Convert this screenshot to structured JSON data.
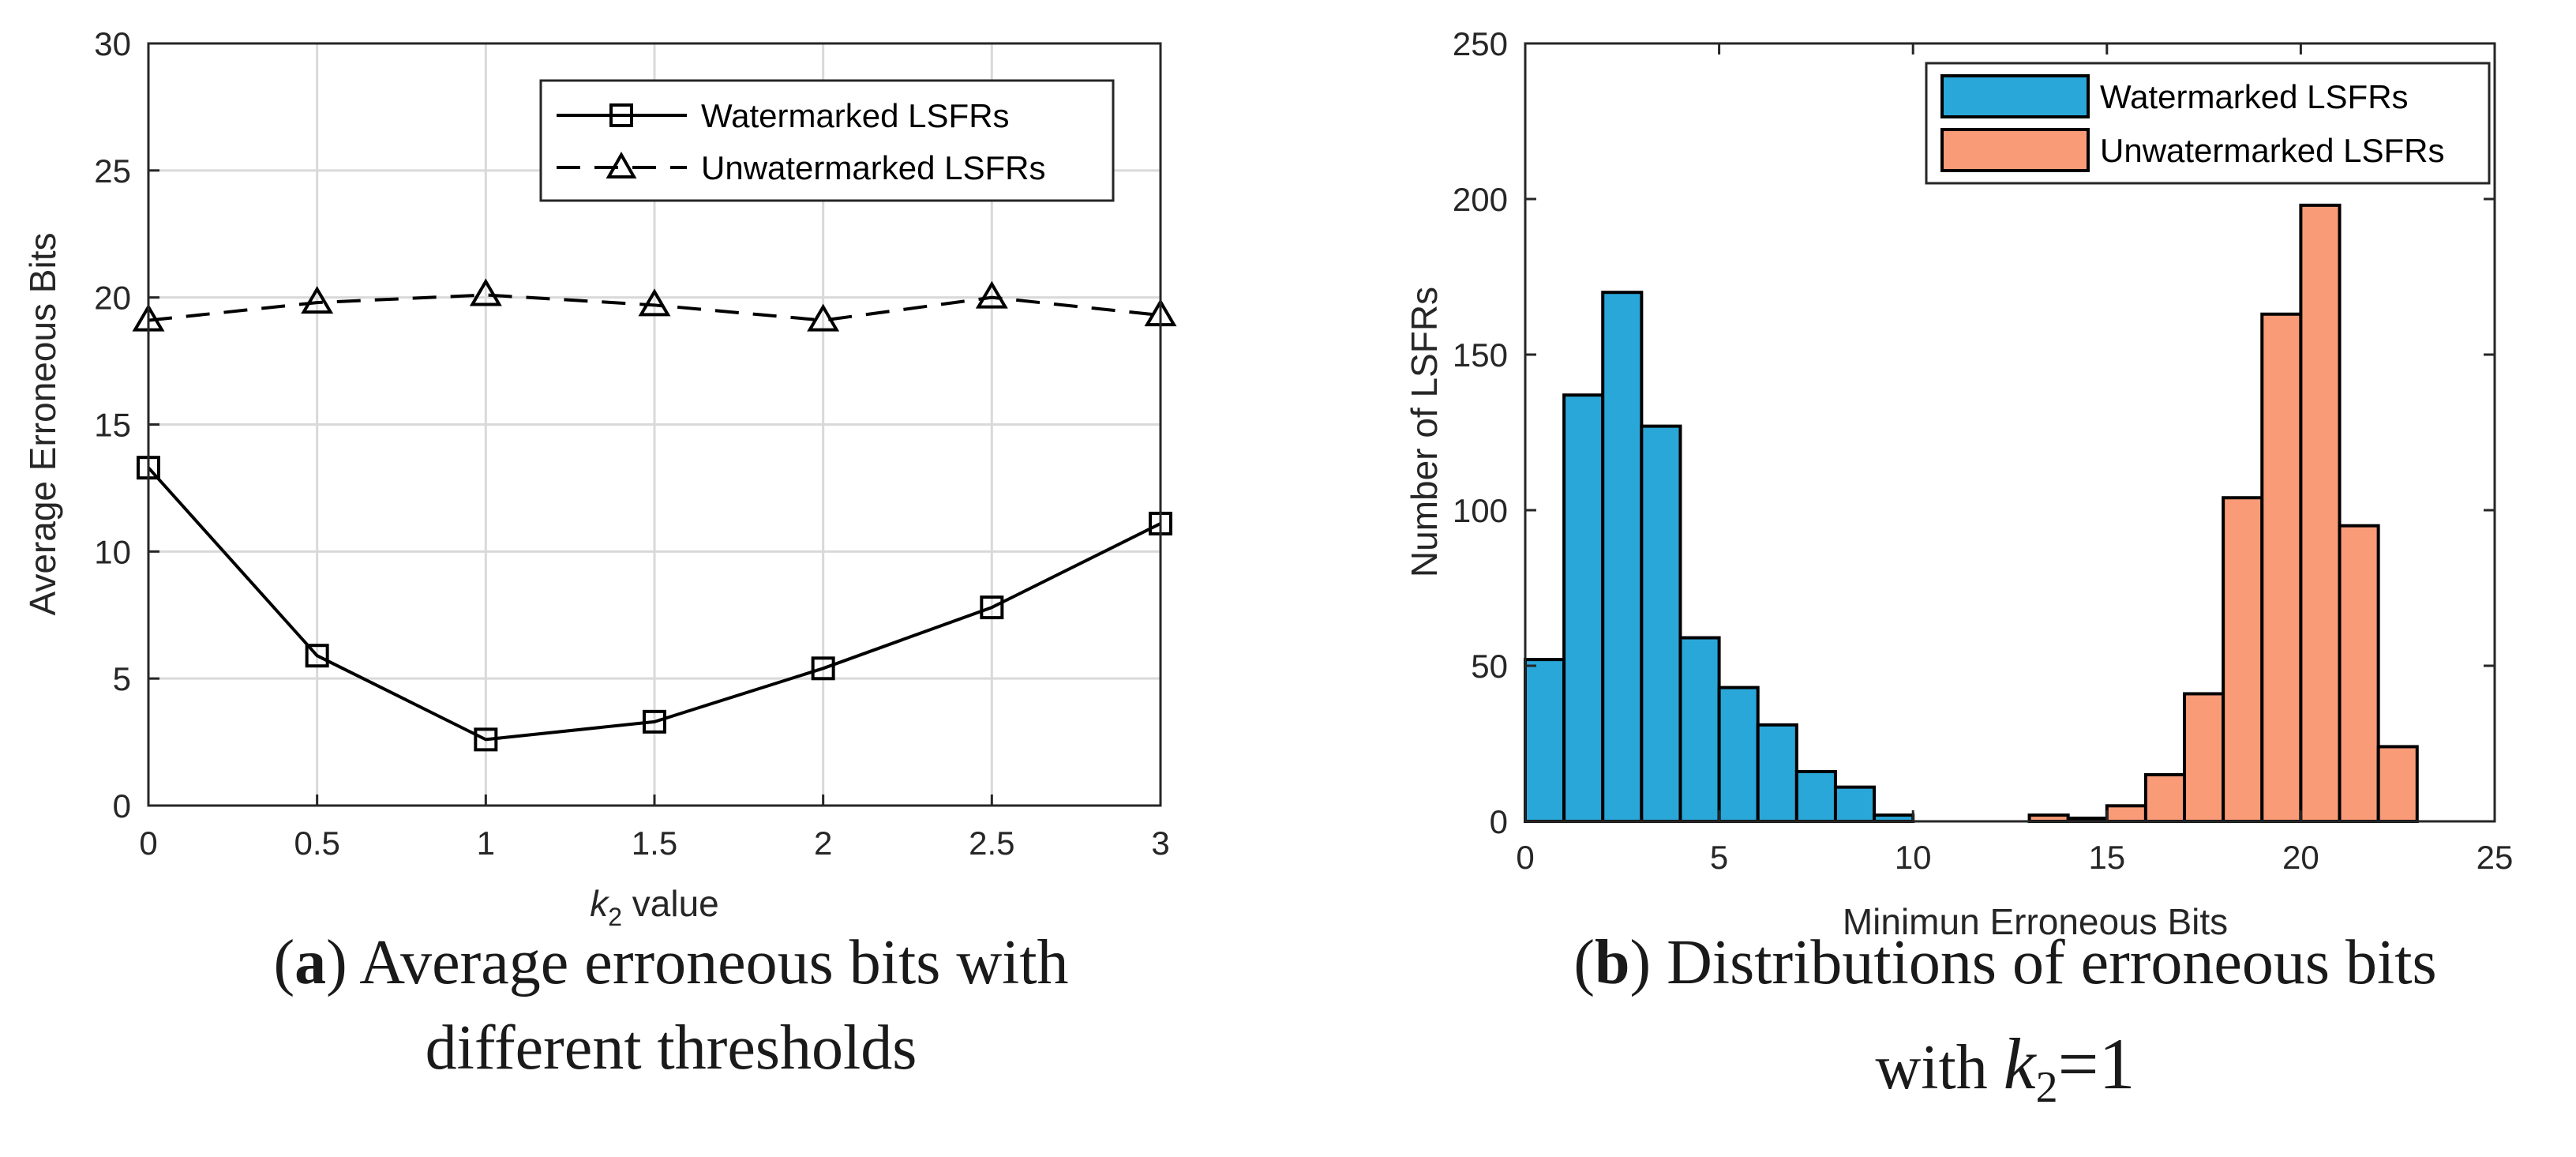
{
  "chart_data": [
    {
      "type": "line",
      "title": "",
      "xlabel_var": "k",
      "xlabel_sub": "2",
      "xlabel_rest": " value",
      "ylabel": "Average Erroneous Bits",
      "xlim": [
        0,
        3
      ],
      "ylim": [
        0,
        30
      ],
      "grid": true,
      "legend_position": "top-right",
      "x_ticks": [
        "0",
        "0.5",
        "1",
        "1.5",
        "2",
        "2.5",
        "3"
      ],
      "y_ticks": [
        "0",
        "5",
        "10",
        "15",
        "20",
        "25",
        "30"
      ],
      "x": [
        0,
        0.5,
        1,
        1.5,
        2,
        2.5,
        3
      ],
      "series": [
        {
          "name": "Watermarked LSFRs",
          "marker": "square",
          "line": "solid",
          "values": [
            13.3,
            5.9,
            2.6,
            3.3,
            5.4,
            7.8,
            11.1
          ]
        },
        {
          "name": "Unwatermarked LSFRs",
          "marker": "triangle",
          "line": "dashed",
          "values": [
            19.1,
            19.8,
            20.1,
            19.7,
            19.1,
            20.0,
            19.3
          ]
        }
      ]
    },
    {
      "type": "bar",
      "subtype": "histogram",
      "title": "",
      "xlabel": "Minimun Erroneous Bits",
      "ylabel": "Number of LSFRs",
      "xlim": [
        0,
        25
      ],
      "ylim": [
        0,
        250
      ],
      "grid": false,
      "legend_position": "top-right",
      "x_ticks": [
        "0",
        "5",
        "10",
        "15",
        "20",
        "25"
      ],
      "y_ticks": [
        "0",
        "50",
        "100",
        "150",
        "200",
        "250"
      ],
      "series": [
        {
          "name": "Watermarked LSFRs",
          "color": "#2aa7d9",
          "bins": [
            [
              0,
              52
            ],
            [
              1,
              137
            ],
            [
              2,
              170
            ],
            [
              3,
              127
            ],
            [
              4,
              59
            ],
            [
              5,
              43
            ],
            [
              6,
              31
            ],
            [
              7,
              16
            ],
            [
              8,
              11
            ],
            [
              9,
              2
            ]
          ]
        },
        {
          "name": "Unwatermarked LSFRs",
          "color": "#fa9b77",
          "bins": [
            [
              13,
              2
            ],
            [
              14,
              1
            ],
            [
              15,
              5
            ],
            [
              16,
              15
            ],
            [
              17,
              41
            ],
            [
              18,
              104
            ],
            [
              19,
              163
            ],
            [
              20,
              198
            ],
            [
              21,
              95
            ],
            [
              22,
              24
            ]
          ]
        }
      ]
    }
  ],
  "captions": {
    "a_label": "a",
    "a_text_line1": " Average erroneous bits with",
    "a_text_line2": "different thresholds",
    "b_label": "b",
    "b_text_line1": " Distributions of erroneous bits",
    "b_text_line2_prefix": "with ",
    "b_var": "k",
    "b_sub": "2",
    "b_eq": "=1"
  }
}
